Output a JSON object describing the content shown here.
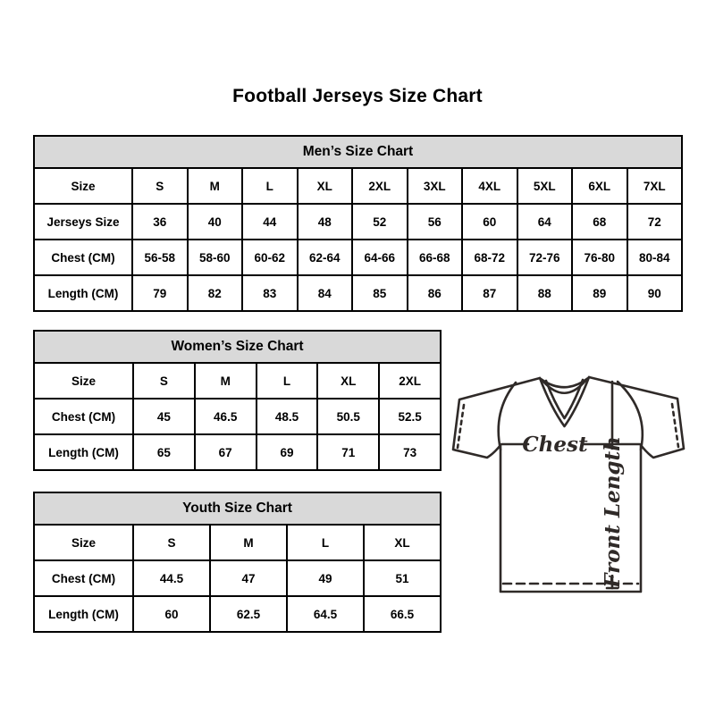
{
  "page": {
    "title": "Football Jerseys Size Chart"
  },
  "tables": {
    "men": {
      "title": "Men’s Size Chart",
      "rows": [
        {
          "label": "Size",
          "values": [
            "S",
            "M",
            "L",
            "XL",
            "2XL",
            "3XL",
            "4XL",
            "5XL",
            "6XL",
            "7XL"
          ]
        },
        {
          "label": "Jerseys Size",
          "values": [
            "36",
            "40",
            "44",
            "48",
            "52",
            "56",
            "60",
            "64",
            "68",
            "72"
          ]
        },
        {
          "label": "Chest (CM)",
          "values": [
            "56-58",
            "58-60",
            "60-62",
            "62-64",
            "64-66",
            "66-68",
            "68-72",
            "72-76",
            "76-80",
            "80-84"
          ]
        },
        {
          "label": "Length (CM)",
          "values": [
            "79",
            "82",
            "83",
            "84",
            "85",
            "86",
            "87",
            "88",
            "89",
            "90"
          ]
        }
      ]
    },
    "women": {
      "title": "Women’s Size Chart",
      "rows": [
        {
          "label": "Size",
          "values": [
            "S",
            "M",
            "L",
            "XL",
            "2XL"
          ]
        },
        {
          "label": "Chest (CM)",
          "values": [
            "45",
            "46.5",
            "48.5",
            "50.5",
            "52.5"
          ]
        },
        {
          "label": "Length (CM)",
          "values": [
            "65",
            "67",
            "69",
            "71",
            "73"
          ]
        }
      ]
    },
    "youth": {
      "title": "Youth Size Chart",
      "rows": [
        {
          "label": "Size",
          "values": [
            "S",
            "M",
            "L",
            "XL"
          ]
        },
        {
          "label": "Chest (CM)",
          "values": [
            "44.5",
            "47",
            "49",
            "51"
          ]
        },
        {
          "label": "Length (CM)",
          "values": [
            "60",
            "62.5",
            "64.5",
            "66.5"
          ]
        }
      ]
    }
  },
  "diagram": {
    "chest_label": "Chest",
    "front_length_label": "Front Length"
  },
  "colors": {
    "header_bg": "#d9d9d9",
    "border": "#000000",
    "text": "#000000",
    "diagram_ink": "#2f2a28",
    "background": "#ffffff"
  }
}
